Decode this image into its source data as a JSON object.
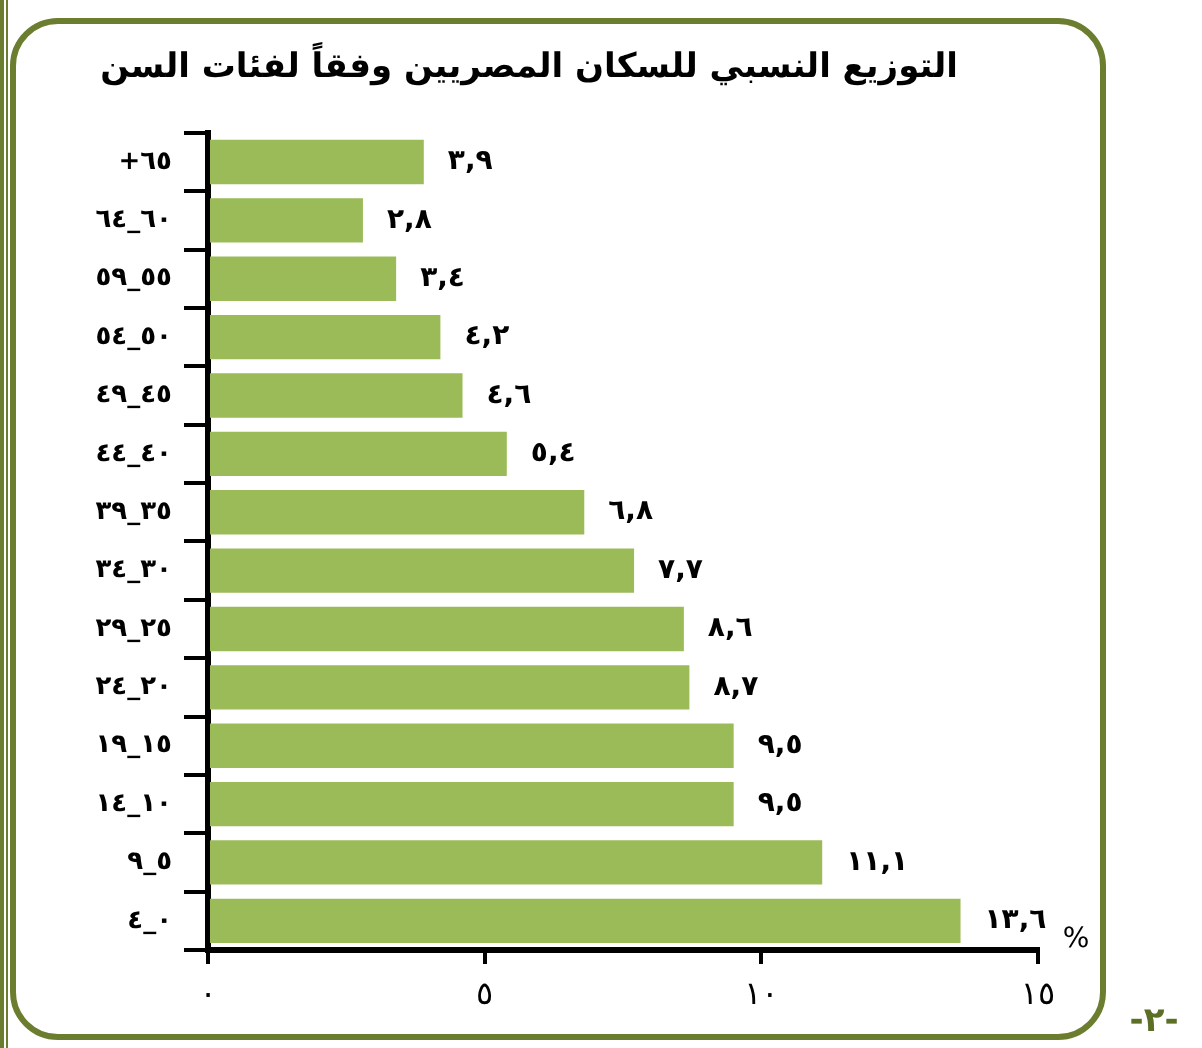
{
  "chart_data": {
    "type": "bar",
    "orientation": "horizontal",
    "title": "التوزيع النسبي للسكان المصريين وفقاً لفئات السن",
    "categories": [
      "+٦٥",
      "٦٠_٦٤",
      "٥٥_٥٩",
      "٥٠_٥٤",
      "٤٥_٤٩",
      "٤٠_٤٤",
      "٣٥_٣٩",
      "٣٠_٣٤",
      "٢٥_٢٩",
      "٢٠_٢٤",
      "١٥_١٩",
      "١٠_١٤",
      "٥_٩",
      "٠_٤"
    ],
    "values": [
      3.9,
      2.8,
      3.4,
      4.2,
      4.6,
      5.4,
      6.8,
      7.7,
      8.6,
      8.7,
      9.5,
      9.5,
      11.1,
      13.6
    ],
    "value_labels": [
      "٣,٩",
      "٢,٨",
      "٣,٤",
      "٤,٢",
      "٤,٦",
      "٥,٤",
      "٦,٨",
      "٧,٧",
      "٨,٦",
      "٨,٧",
      "٩,٥",
      "٩,٥",
      "١١,١",
      "١٣,٦"
    ],
    "color": "#9bbb59",
    "xlim": [
      0,
      15
    ],
    "xticks": [
      {
        "value": 0,
        "label": "٠"
      },
      {
        "value": 5,
        "label": "٥"
      },
      {
        "value": 10,
        "label": "١٠"
      },
      {
        "value": 15,
        "label": "١٥"
      }
    ],
    "grid": false,
    "legend": false,
    "annotations": [
      "%",
      "-٢-"
    ]
  }
}
